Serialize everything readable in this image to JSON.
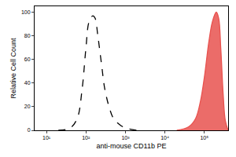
{
  "chart_data": {
    "type": "line",
    "log": "x",
    "xlabel": "anti-mouse CD11b PE",
    "ylabel": "Relative Cell Count",
    "xlim": [
      5,
      400000
    ],
    "xticks": [
      {
        "value": 10,
        "label": "10¹"
      },
      {
        "value": 100,
        "label": "10²"
      },
      {
        "value": 1000,
        "label": "10³"
      },
      {
        "value": 10000,
        "label": "10⁴"
      },
      {
        "value": 100000,
        "label": "10⁵"
      }
    ],
    "ylim": [
      0,
      105
    ],
    "yticks": [
      0,
      20,
      40,
      60,
      80,
      100
    ],
    "grid": false,
    "series": [
      {
        "type": "line",
        "line_style": "dashed",
        "color": "#000000",
        "x": [
          20,
          40,
          60,
          80,
          100,
          120,
          150,
          170,
          200,
          250,
          300,
          400,
          500,
          700,
          1000,
          2000
        ],
        "values": [
          0,
          2,
          10,
          35,
          70,
          92,
          97,
          95,
          80,
          55,
          35,
          18,
          10,
          5,
          2,
          0
        ]
      },
      {
        "type": "area",
        "line_style": "solid",
        "color": "#e8524f",
        "x": [
          20000,
          40000,
          60000,
          80000,
          100000,
          130000,
          160000,
          200000,
          230000,
          260000,
          300000,
          340000,
          400000
        ],
        "values": [
          0,
          3,
          10,
          25,
          45,
          75,
          92,
          100,
          95,
          70,
          30,
          8,
          0
        ]
      }
    ]
  }
}
